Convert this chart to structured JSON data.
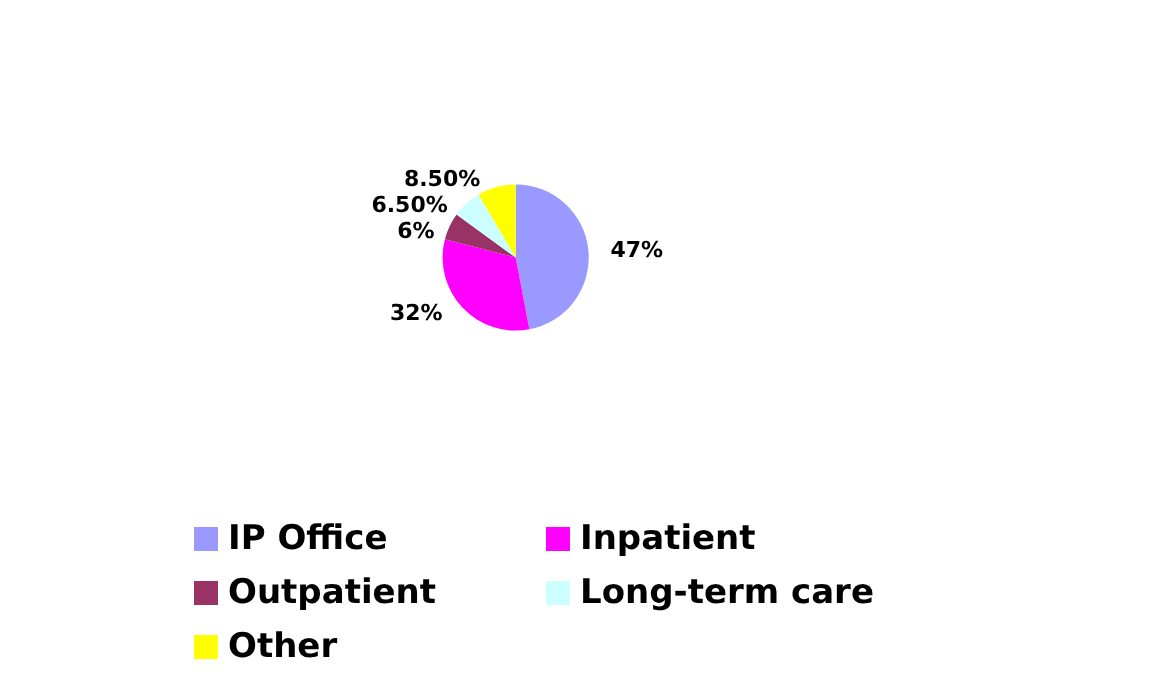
{
  "chart_data": {
    "type": "pie",
    "categories": [
      "IP Office",
      "Inpatient",
      "Outpatient",
      "Long-term care",
      "Other"
    ],
    "values": [
      47,
      32,
      6,
      6.5,
      8.5
    ],
    "value_labels": [
      "47%",
      "32%",
      "6%",
      "6.50%",
      "8.50%"
    ],
    "colors": [
      "#9999ff",
      "#ff00ff",
      "#993366",
      "#ccffff",
      "#ffff00"
    ],
    "legend": "bottom"
  }
}
